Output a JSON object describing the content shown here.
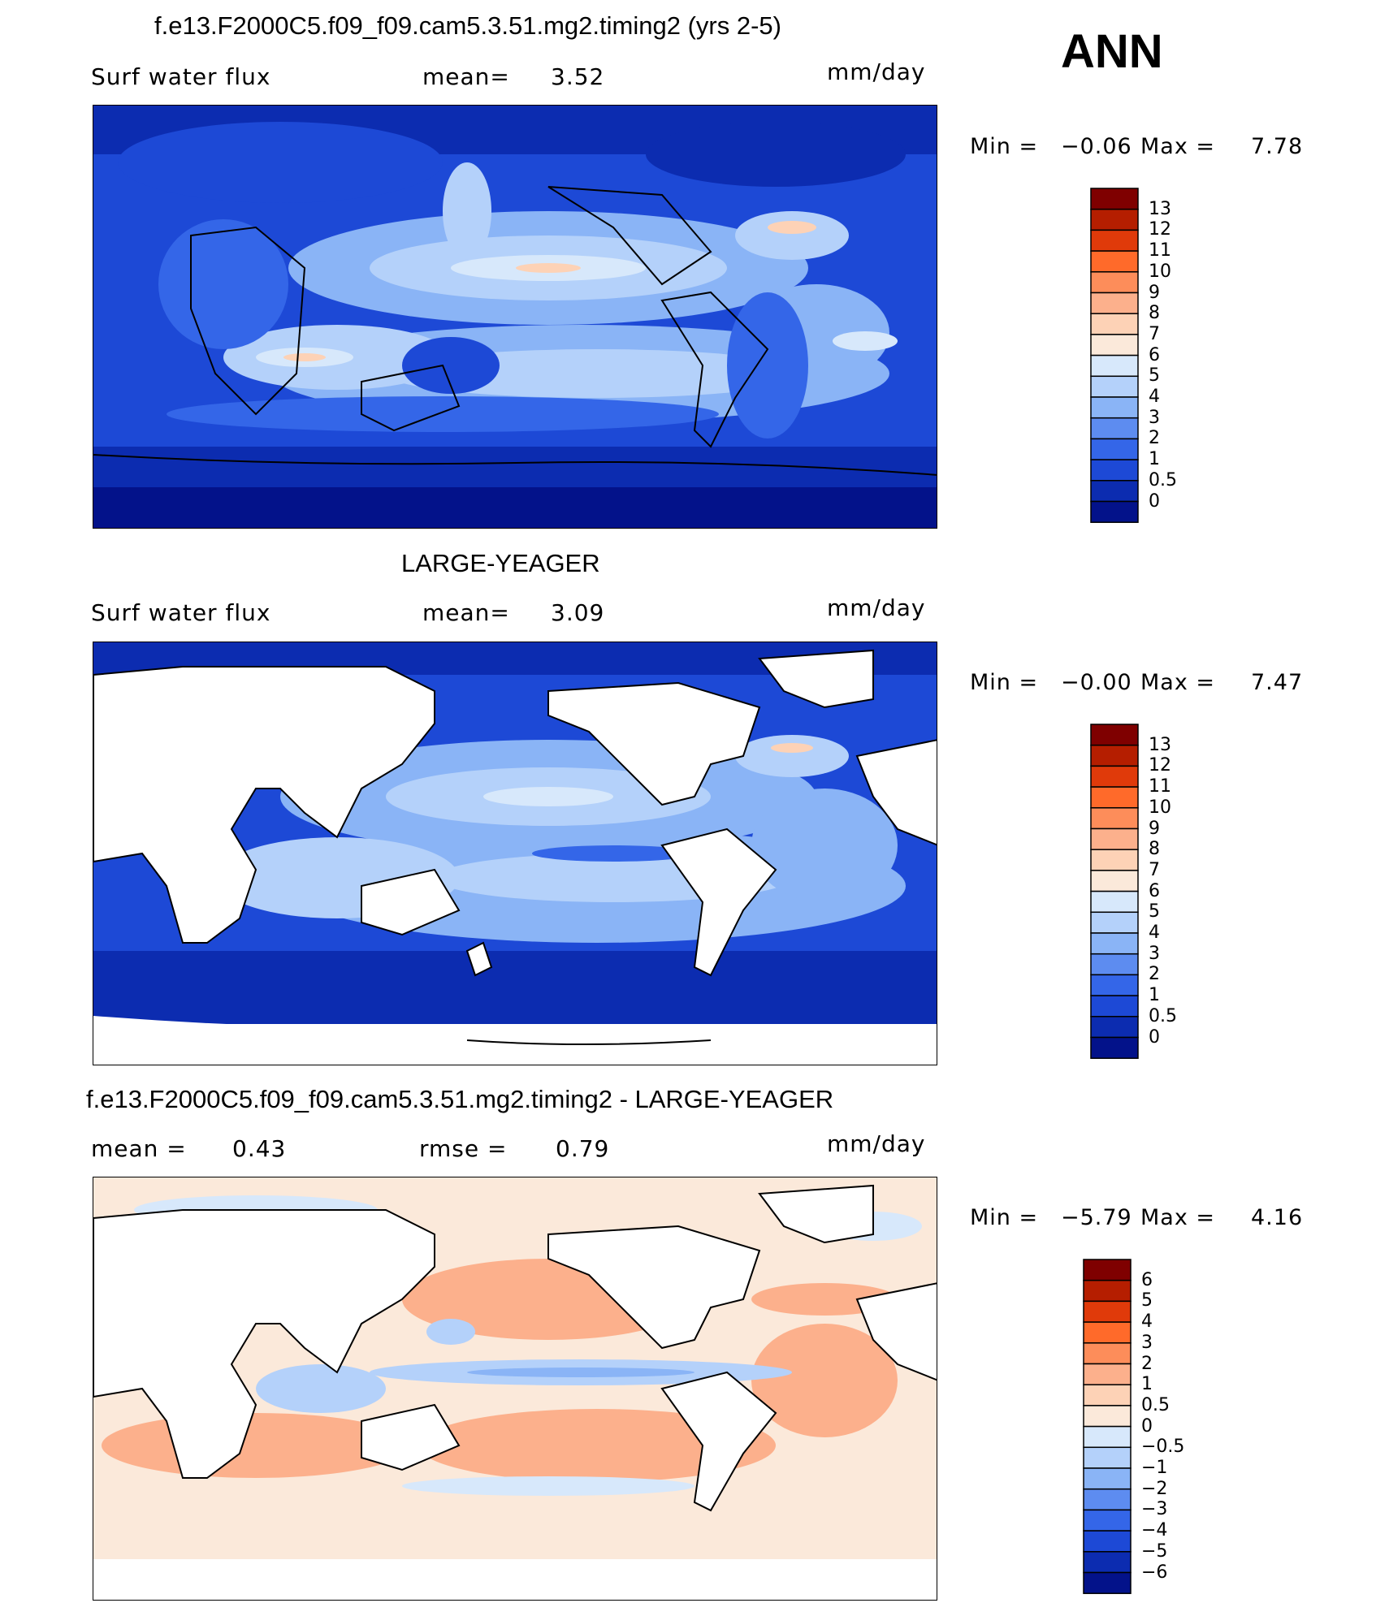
{
  "season": "ANN",
  "units_label": "mm/day",
  "panels": [
    {
      "title": "f.e13.F2000C5.f09_f09.cam5.3.51.mg2.timing2 (yrs 2-5)",
      "variable": "Surf water flux",
      "stat1_label": "mean=",
      "stat1_value": "3.52",
      "units": "mm/day",
      "min_label": "Min =",
      "min_value": "−0.06",
      "max_label": "Max =",
      "max_value": "7.78",
      "kind": "model",
      "colorbar": {
        "labels": [
          "13",
          "12",
          "11",
          "10",
          "9",
          "8",
          "7",
          "6",
          "5",
          "4",
          "3",
          "2",
          "1",
          "0.5",
          "0"
        ],
        "colors": [
          "#7f0000",
          "#b51e00",
          "#e03a0a",
          "#ff6a2a",
          "#fd8d5a",
          "#fcb08c",
          "#fdd2b6",
          "#fbe9da",
          "#d7e8fb",
          "#b4d1fa",
          "#8ab4f6",
          "#5d8cf0",
          "#3466e8",
          "#1d49d6",
          "#0c2cb0",
          "#03128a"
        ]
      }
    },
    {
      "title": "LARGE-YEAGER",
      "variable": "Surf water flux",
      "stat1_label": "mean=",
      "stat1_value": "3.09",
      "units": "mm/day",
      "min_label": "Min =",
      "min_value": "−0.00",
      "max_label": "Max =",
      "max_value": "7.47",
      "kind": "obs",
      "colorbar": {
        "labels": [
          "13",
          "12",
          "11",
          "10",
          "9",
          "8",
          "7",
          "6",
          "5",
          "4",
          "3",
          "2",
          "1",
          "0.5",
          "0"
        ],
        "colors": [
          "#7f0000",
          "#b51e00",
          "#e03a0a",
          "#ff6a2a",
          "#fd8d5a",
          "#fcb08c",
          "#fdd2b6",
          "#fbe9da",
          "#d7e8fb",
          "#b4d1fa",
          "#8ab4f6",
          "#5d8cf0",
          "#3466e8",
          "#1d49d6",
          "#0c2cb0",
          "#03128a"
        ]
      }
    },
    {
      "title": "f.e13.F2000C5.f09_f09.cam5.3.51.mg2.timing2 - LARGE-YEAGER",
      "variable": "mean =",
      "stat1_label": "0.43",
      "stat1_value": "",
      "stat2_label": "rmse =",
      "stat2_value": "0.79",
      "units": "mm/day",
      "min_label": "Min =",
      "min_value": "−5.79",
      "max_label": "Max =",
      "max_value": "4.16",
      "kind": "diff",
      "colorbar": {
        "labels": [
          "6",
          "5",
          "4",
          "3",
          "2",
          "1",
          "0.5",
          "0",
          "−0.5",
          "−1",
          "−2",
          "−3",
          "−4",
          "−5",
          "−6"
        ],
        "colors": [
          "#7f0000",
          "#b51e00",
          "#e03a0a",
          "#ff6a2a",
          "#fd8d5a",
          "#fcb08c",
          "#fdd2b6",
          "#fbe9da",
          "#d7e8fb",
          "#b4d1fa",
          "#8ab4f6",
          "#5d8cf0",
          "#3466e8",
          "#1d49d6",
          "#0c2cb0",
          "#03128a"
        ]
      }
    }
  ]
}
